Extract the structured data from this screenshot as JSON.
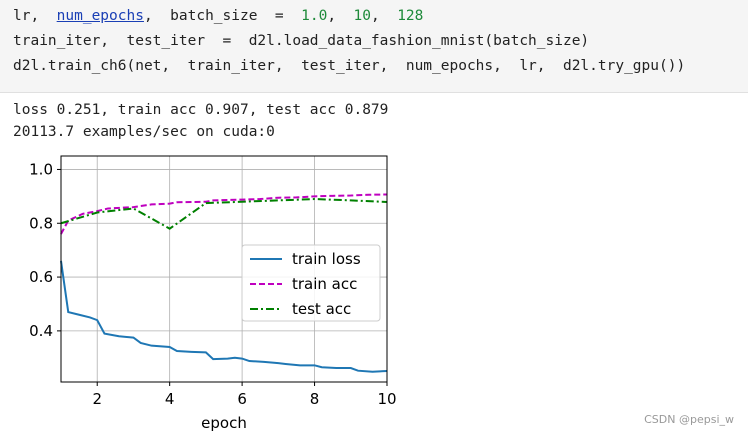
{
  "code": {
    "lines": [
      [
        {
          "text": "lr,  ",
          "style": "plain"
        },
        {
          "text": "num_epochs",
          "style": "link"
        },
        {
          "text": ",  batch_size  =  ",
          "style": "plain"
        },
        {
          "text": "1.0",
          "style": "number"
        },
        {
          "text": ",  ",
          "style": "plain"
        },
        {
          "text": "10",
          "style": "number"
        },
        {
          "text": ",  ",
          "style": "plain"
        },
        {
          "text": "128",
          "style": "number"
        }
      ],
      [
        {
          "text": "train_iter,  test_iter  =  d2l.load_data_fashion_mnist(batch_size)",
          "style": "plain"
        }
      ],
      [
        {
          "text": "d2l.train_ch6(net,  train_iter,  test_iter,  num_epochs,  lr,  d2l.try_gpu())",
          "style": "plain"
        }
      ]
    ]
  },
  "output": [
    "loss 0.251, train acc 0.907, test acc 0.879",
    "20113.7 examples/sec on cuda:0"
  ],
  "chart_data": {
    "type": "line",
    "xlabel": "epoch",
    "xlim": [
      1,
      10
    ],
    "xticks": [
      2,
      4,
      6,
      8,
      10
    ],
    "ylim": [
      0.21,
      1.05
    ],
    "yticks": [
      0.4,
      0.6,
      0.8,
      {
        "value": 1,
        "label": "1.0"
      }
    ],
    "grid": true,
    "legend": "center right",
    "series": [
      {
        "name": "train loss",
        "color": "#1f77b4",
        "linestyle": "solid",
        "x": [
          1,
          1.2,
          1.5,
          1.8,
          2,
          2.2,
          2.6,
          3,
          3.2,
          3.5,
          4,
          4.2,
          4.6,
          5,
          5.2,
          5.6,
          5.8,
          6,
          6.2,
          6.6,
          7,
          7.2,
          7.6,
          8,
          8.2,
          8.6,
          9,
          9.2,
          9.6,
          10
        ],
        "values": [
          0.66,
          0.47,
          0.46,
          0.45,
          0.44,
          0.39,
          0.38,
          0.375,
          0.355,
          0.345,
          0.34,
          0.325,
          0.322,
          0.32,
          0.295,
          0.297,
          0.3,
          0.297,
          0.288,
          0.285,
          0.28,
          0.277,
          0.272,
          0.272,
          0.265,
          0.262,
          0.262,
          0.252,
          0.248,
          0.251
        ]
      },
      {
        "name": "train acc",
        "color": "#bf00bf",
        "linestyle": "dashed",
        "x": [
          1,
          1.2,
          1.6,
          2,
          2.3,
          3,
          3.5,
          4,
          4.2,
          5,
          5.2,
          6,
          6.5,
          7,
          7.5,
          8,
          8.5,
          9,
          9.5,
          10
        ],
        "values": [
          0.76,
          0.81,
          0.835,
          0.845,
          0.855,
          0.86,
          0.87,
          0.873,
          0.878,
          0.88,
          0.885,
          0.888,
          0.89,
          0.895,
          0.896,
          0.9,
          0.902,
          0.903,
          0.906,
          0.907
        ]
      },
      {
        "name": "test acc",
        "color": "#008000",
        "linestyle": "dashdot",
        "x": [
          1,
          2,
          3,
          4,
          5,
          6,
          7,
          8,
          9,
          10
        ],
        "values": [
          0.8,
          0.84,
          0.855,
          0.78,
          0.875,
          0.88,
          0.885,
          0.89,
          0.885,
          0.879
        ]
      }
    ]
  },
  "watermark": "CSDN @pepsi_w"
}
